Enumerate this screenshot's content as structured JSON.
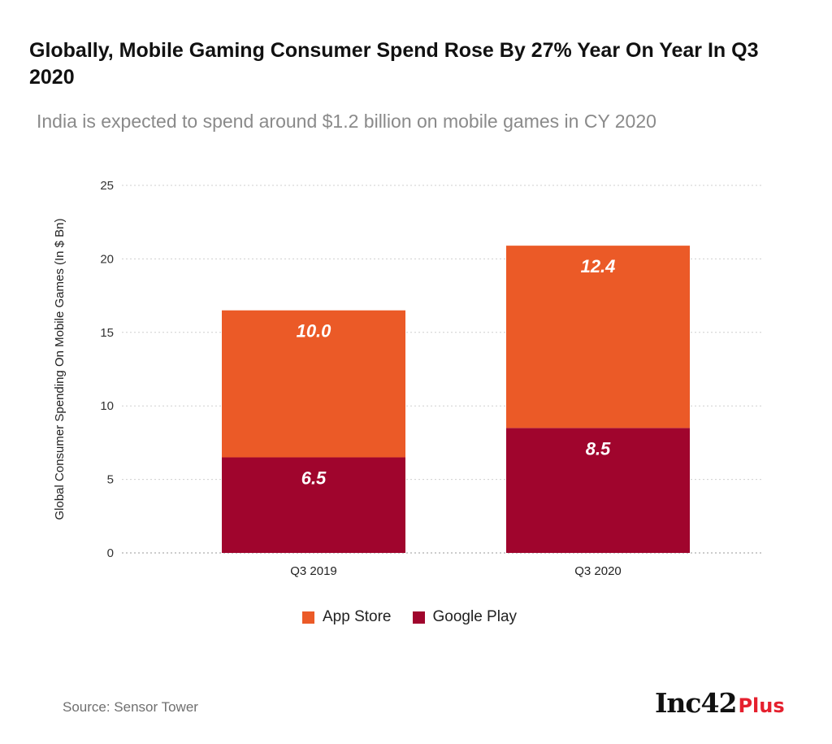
{
  "header": {
    "title": "Globally, Mobile Gaming Consumer Spend Rose By 27% Year On Year In Q3 2020",
    "subtitle": "India is expected to spend around $1.2 billion on mobile games in CY 2020"
  },
  "footer": {
    "source": "Source: Sensor Tower",
    "logo_main": "Inc42",
    "logo_plus": "Plus"
  },
  "chart_data": {
    "type": "bar",
    "stacked": true,
    "title": "Globally, Mobile Gaming Consumer Spend Rose By 27% Year On Year In Q3 2020",
    "subtitle": "India is expected to spend around $1.2 billion on mobile games in CY 2020",
    "xlabel": "",
    "ylabel": "Global Consumer Spending On Mobile Games (In $ Bn)",
    "categories": [
      "Q3 2019",
      "Q3 2020"
    ],
    "series": [
      {
        "name": "Google Play",
        "values": [
          6.5,
          8.5
        ],
        "labels": [
          "6.5",
          "8.5"
        ],
        "color": "#a0052d"
      },
      {
        "name": "App Store",
        "values": [
          10.0,
          12.4
        ],
        "labels": [
          "10.0",
          "12.4"
        ],
        "color": "#eb5a27"
      }
    ],
    "legend_order": [
      "App Store",
      "Google Play"
    ],
    "ylim": [
      0,
      25
    ],
    "yticks": [
      0,
      5,
      10,
      15,
      20,
      25
    ],
    "ytick_labels": [
      "0",
      "5",
      "10",
      "15",
      "20",
      "25"
    ],
    "grid": true,
    "legend_position": "bottom-center"
  }
}
